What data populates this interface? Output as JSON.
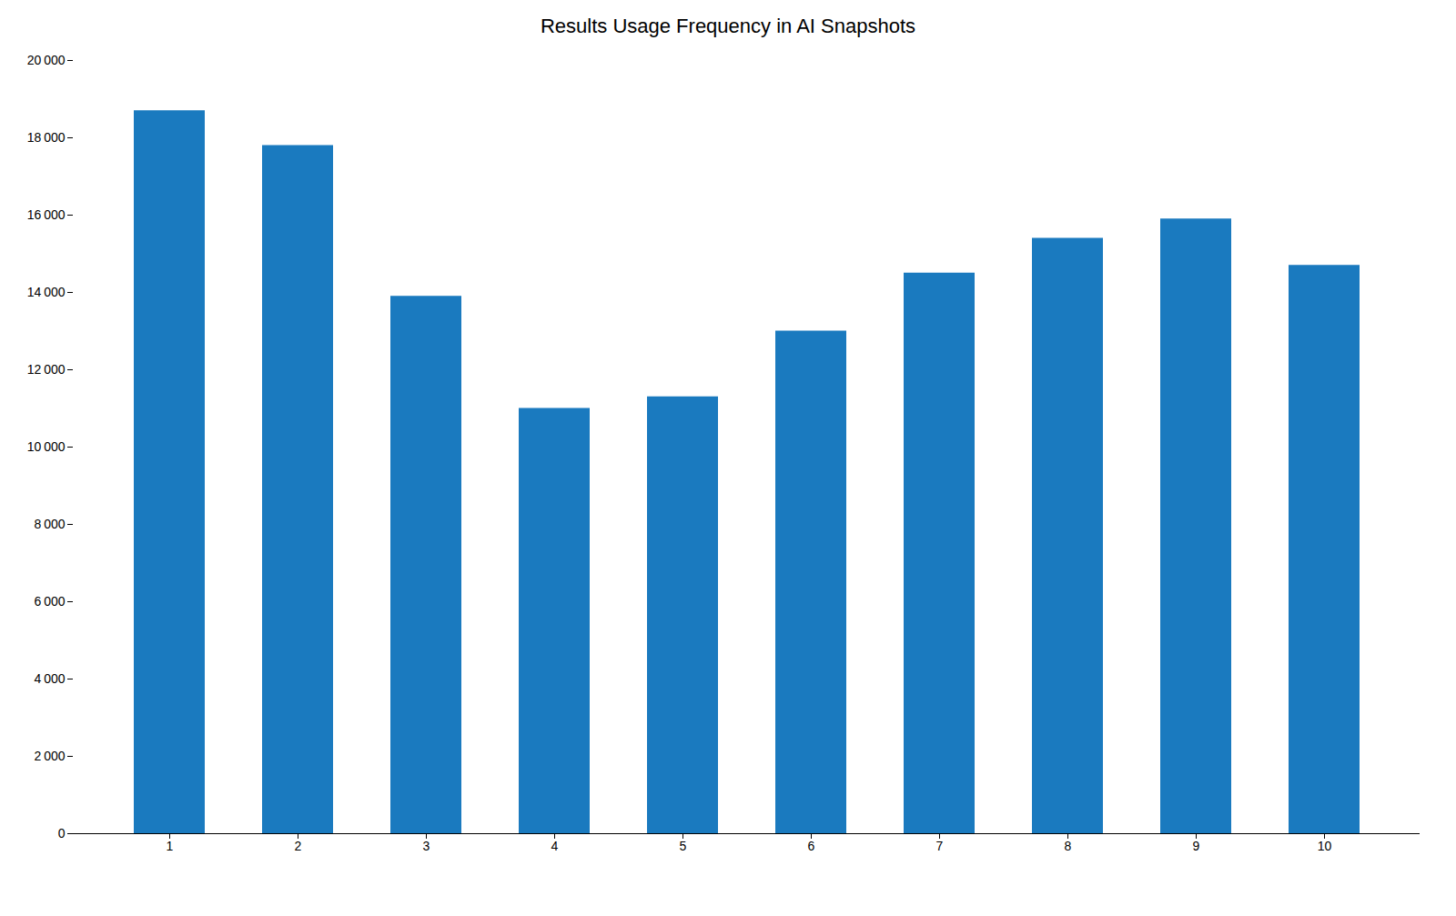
{
  "chart_data": {
    "type": "bar",
    "title": "Results Usage Frequency in AI Snapshots",
    "categories": [
      1,
      2,
      3,
      4,
      5,
      6,
      7,
      8,
      9,
      10
    ],
    "values": [
      18700,
      17800,
      13900,
      11000,
      11300,
      13000,
      14500,
      15400,
      15900,
      14700
    ],
    "color": "#1a7abf",
    "ylim": [
      0,
      20000
    ],
    "yticks": [
      0,
      {
        "value": 2000,
        "label": "2 000"
      },
      {
        "value": 4000,
        "label": "4 000"
      },
      {
        "value": 6000,
        "label": "6 000"
      },
      {
        "value": 8000,
        "label": "8 000"
      },
      {
        "value": 10000,
        "label": "10 000"
      },
      {
        "value": 12000,
        "label": "12 000"
      },
      {
        "value": 14000,
        "label": "14 000"
      },
      {
        "value": 16000,
        "label": "16 000"
      },
      {
        "value": 18000,
        "label": "18 000"
      },
      {
        "value": 20000,
        "label": "20 000"
      }
    ],
    "grid": false
  }
}
